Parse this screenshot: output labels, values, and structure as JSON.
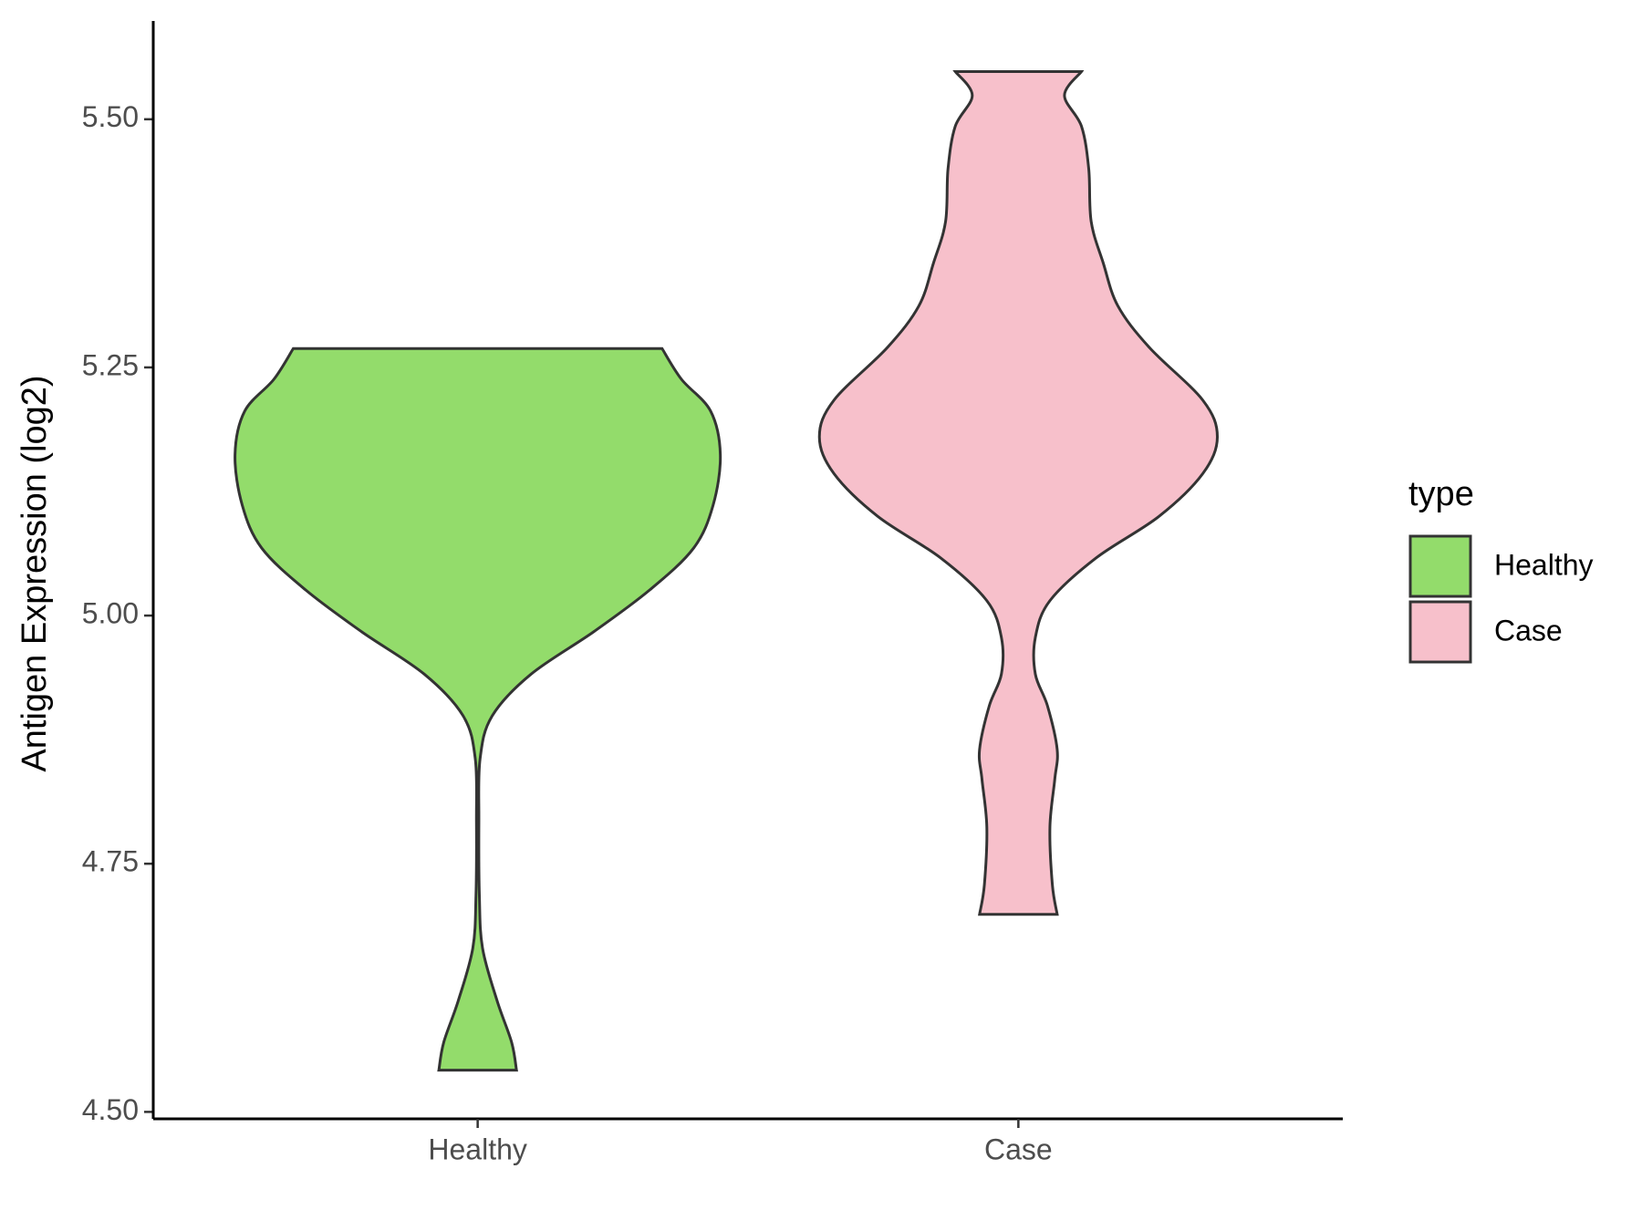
{
  "chart_data": {
    "type": "violin",
    "y_label": "Antigen Expression (log2)",
    "categories": [
      "Healthy",
      "Case"
    ],
    "series": [
      {
        "name": "Healthy",
        "color": "#93dc6b",
        "y": [
          4.542,
          4.57,
          4.612,
          4.665,
          4.718,
          4.793,
          4.856,
          4.899,
          4.941,
          4.984,
          5.026,
          5.068,
          5.111,
          5.162,
          5.206,
          5.238,
          5.269
        ],
        "density": [
          0.16,
          0.14,
          0.08,
          0.02,
          0.007,
          0.005,
          0.01,
          0.06,
          0.22,
          0.48,
          0.71,
          0.89,
          0.97,
          1.0,
          0.96,
          0.84,
          0.76
        ]
      },
      {
        "name": "Case",
        "color": "#f7c0cb",
        "y": [
          4.699,
          4.729,
          4.787,
          4.835,
          4.865,
          4.909,
          4.941,
          4.978,
          5.015,
          5.058,
          5.1,
          5.143,
          5.18,
          5.217,
          5.27,
          5.312,
          5.355,
          5.397,
          5.45,
          5.493,
          5.524,
          5.548
        ],
        "density": [
          0.16,
          0.14,
          0.13,
          0.15,
          0.16,
          0.12,
          0.07,
          0.07,
          0.13,
          0.32,
          0.58,
          0.76,
          0.82,
          0.76,
          0.54,
          0.41,
          0.35,
          0.3,
          0.29,
          0.26,
          0.19,
          0.26
        ]
      }
    ],
    "legend_title": "type",
    "ylim": [
      4.493,
      5.599
    ],
    "yticks": [
      {
        "value": 4.5,
        "label": "4.50"
      },
      4.75,
      {
        "value": 5,
        "label": "5.00"
      },
      5.25,
      {
        "value": 5.5,
        "label": "5.50"
      }
    ]
  }
}
